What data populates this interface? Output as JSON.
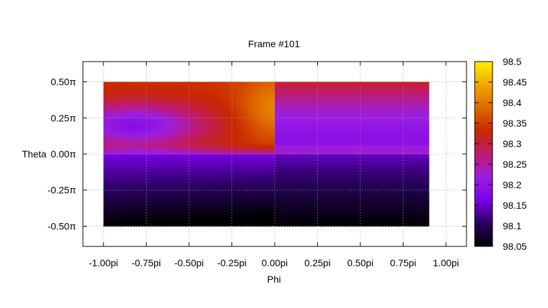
{
  "chart_data": {
    "type": "heatmap",
    "title": "Frame #101",
    "xlabel": "Phi",
    "ylabel": "Theta",
    "x_ticks": [
      {
        "value": -1.0,
        "label": "-1.00pi"
      },
      {
        "value": -0.75,
        "label": "-0.75pi"
      },
      {
        "value": -0.5,
        "label": "-0.50pi"
      },
      {
        "value": -0.25,
        "label": "-0.25pi"
      },
      {
        "value": 0.0,
        "label": "0.00pi"
      },
      {
        "value": 0.25,
        "label": "0.25pi"
      },
      {
        "value": 0.5,
        "label": "0.50pi"
      },
      {
        "value": 0.75,
        "label": "0.75pi"
      },
      {
        "value": 1.0,
        "label": "1.00pi"
      }
    ],
    "y_ticks": [
      {
        "value": 0.5,
        "label": "0.50π"
      },
      {
        "value": 0.25,
        "label": "0.25π"
      },
      {
        "value": 0.0,
        "label": "0.00π"
      },
      {
        "value": -0.25,
        "label": "-0.25π"
      },
      {
        "value": -0.5,
        "label": "-0.50π"
      }
    ],
    "xlim": [
      -1.12,
      1.12
    ],
    "ylim": [
      -0.64,
      0.64
    ],
    "data_extent": {
      "x": [
        -1.0,
        0.9
      ],
      "y": [
        -0.5,
        0.5
      ]
    },
    "grid": true,
    "colorbar": {
      "range": [
        98.05,
        98.5
      ],
      "ticks": [
        {
          "value": 98.5,
          "label": "98.5"
        },
        {
          "value": 98.45,
          "label": "98.45"
        },
        {
          "value": 98.4,
          "label": "98.4"
        },
        {
          "value": 98.35,
          "label": "98.35"
        },
        {
          "value": 98.3,
          "label": "98.3"
        },
        {
          "value": 98.25,
          "label": "98.25"
        },
        {
          "value": 98.2,
          "label": "98.2"
        },
        {
          "value": 98.15,
          "label": "98.15"
        },
        {
          "value": 98.1,
          "label": "98.1"
        },
        {
          "value": 98.05,
          "label": "98.05"
        }
      ],
      "palette": [
        "#000000",
        "#2a0060",
        "#7a00e8",
        "#9b1ee0",
        "#c01a6e",
        "#c82800",
        "#e06a00",
        "#f0a800",
        "#ffee00"
      ]
    },
    "regions": [
      {
        "x": [
          -1.0,
          0.0
        ],
        "y": [
          0.0,
          0.5
        ],
        "description_value_range": [
          98.17,
          98.42
        ]
      },
      {
        "x": [
          -1.0,
          0.0
        ],
        "y": [
          -0.5,
          0.0
        ],
        "description_value_range": [
          98.06,
          98.17
        ]
      },
      {
        "x": [
          0.0,
          0.9
        ],
        "y": [
          0.0,
          0.5
        ],
        "description_value_range": [
          98.17,
          98.31
        ]
      },
      {
        "x": [
          0.0,
          0.9
        ],
        "y": [
          -0.5,
          0.0
        ],
        "description_value_range": [
          98.06,
          98.16
        ]
      }
    ]
  }
}
